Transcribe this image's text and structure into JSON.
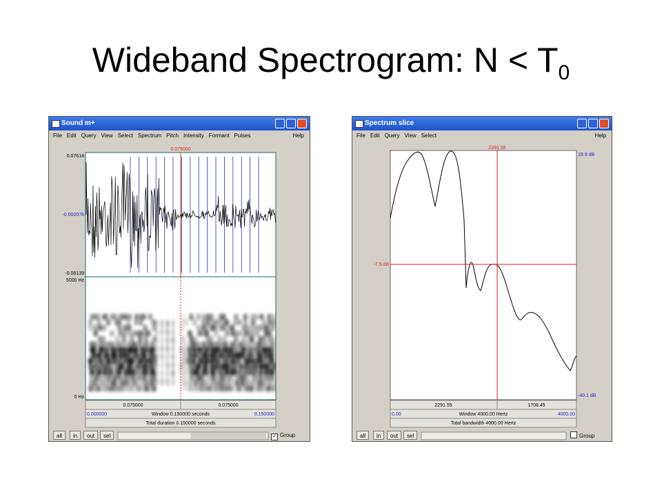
{
  "slide": {
    "title": "Wideband Spectrogram: N < T",
    "title_subscript": "0"
  },
  "sound_window": {
    "title": "Sound m+",
    "menu": [
      "File",
      "Edit",
      "Query",
      "View",
      "Select",
      "Spectrum",
      "Pitch",
      "Intensity",
      "Formant",
      "Pulses"
    ],
    "help": "Help",
    "labels": {
      "y_top": "0.07614",
      "cursor_time": "0.075000",
      "y_cursor": "-0.002078",
      "y_bottom": "-0.08139",
      "freq_top": "5000 Hz",
      "freq_bottom": "0 Hz",
      "left_segment": "0.075000",
      "right_segment": "0.075000",
      "window_start": "0.000000",
      "window": "Window 0.150000 seconds",
      "window_end": "0.150000",
      "total": "Total duration 0.150000 seconds"
    },
    "buttons": [
      "all",
      "in",
      "out",
      "sel"
    ],
    "group": "Group"
  },
  "spectrum_window": {
    "title": "Spectrum slice",
    "menu": [
      "File",
      "Edit",
      "Query",
      "View",
      "Select"
    ],
    "help": "Help",
    "labels": {
      "cursor_freq": "2291.55",
      "db_top": "19.9 dB",
      "db_cursor": "-7.5 dB",
      "db_bottom": "-40.1 dB",
      "left_segment": "2291.55",
      "right_segment": "1708.45",
      "window_start": "0.00",
      "window": "Window 4000.00 Hertz",
      "window_end": "4000.00",
      "total": "Total bandwidth 4000.00 Hertz"
    },
    "buttons": [
      "all",
      "in",
      "out",
      "sel"
    ],
    "group": "Group"
  }
}
